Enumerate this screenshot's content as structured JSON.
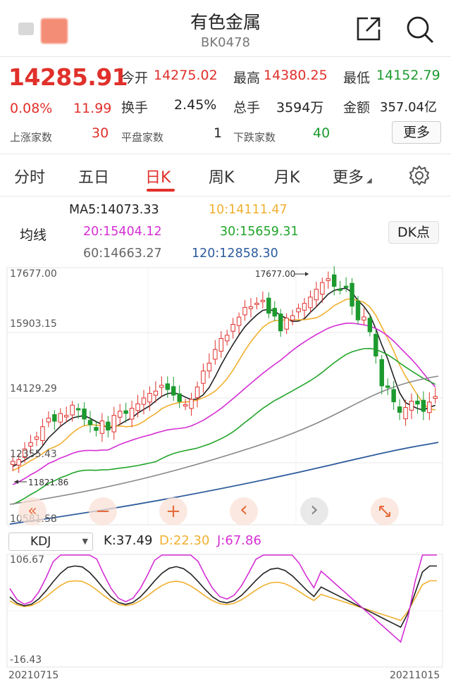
{
  "header": {
    "title": "有色金属",
    "code": "BK0478"
  },
  "quote": {
    "price": "14285.91",
    "change_pct": "0.08%",
    "change_amt": "11.99",
    "open_label": "今开",
    "open_value": "14275.02",
    "high_label": "最高",
    "high_value": "14380.25",
    "low_label": "最低",
    "low_value": "14152.79",
    "turnover_label": "换手",
    "turnover_value": "2.45%",
    "volume_label": "总手",
    "volume_value": "3594万",
    "amount_label": "金额",
    "amount_value": "357.04亿",
    "up_label": "上涨家数",
    "up_value": "30",
    "flat_label": "平盘家数",
    "flat_value": "1",
    "down_label": "下跌家数",
    "down_value": "40",
    "more_label": "更多"
  },
  "tabs": [
    "分时",
    "五日",
    "日K",
    "周K",
    "月K",
    "更多"
  ],
  "ma": {
    "label": "均线",
    "ma5": "MA5:14073.33",
    "ma10": "10:14111.47",
    "ma20": "20:15404.12",
    "ma30": "30:15659.31",
    "ma60": "60:14663.27",
    "ma120": "120:12858.30",
    "dk_label": "DK点"
  },
  "colors": {
    "up": "#e0302b",
    "down": "#1d9a2f",
    "ma5": "#222222",
    "ma10": "#f0b030",
    "ma20": "#d52fd4",
    "ma30": "#22a52a",
    "ma60": "#888888",
    "ma120": "#2d5b9c"
  },
  "main_chart": {
    "y_labels": [
      "17677.00",
      "15903.15",
      "14129.29",
      "12355.43",
      "10581.58"
    ],
    "high_marker": "17677.00",
    "low_marker": "11821.86"
  },
  "kdj": {
    "select_label": "KDJ",
    "k": "K:37.49",
    "d": "D:22.30",
    "j": "J:67.86",
    "y_top": "106.67",
    "y_bottom": "-16.43",
    "x_start": "20210715",
    "x_end": "20211015"
  },
  "controls": {
    "prev_fast": "«",
    "zoom_out": "−",
    "zoom_in": "+",
    "prev": "‹",
    "next": "›",
    "fullscreen": "fullscreen-icon"
  }
}
